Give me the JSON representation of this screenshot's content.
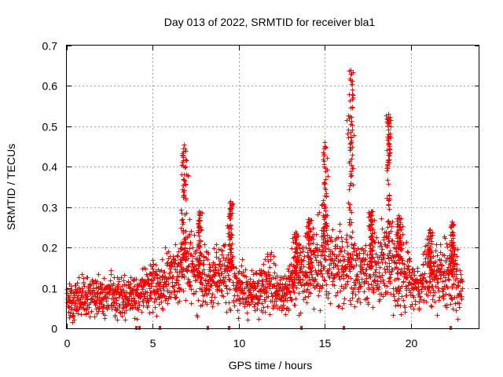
{
  "chart_data": {
    "type": "scatter",
    "title": "Day 013 of 2022, SRMTID for receiver bla1",
    "xlabel": "GPS time / hours",
    "ylabel": "SRMTID / TECUs",
    "xlim": [
      0,
      24
    ],
    "ylim": [
      0,
      0.7
    ],
    "xticks": [
      0,
      5,
      10,
      15,
      20
    ],
    "xtick_labels": [
      "0",
      "5",
      "10",
      "15",
      "20"
    ],
    "yticks": [
      0,
      0.1,
      0.2,
      0.3,
      0.4,
      0.5,
      0.6,
      0.7
    ],
    "ytick_labels": [
      "0",
      "0.1",
      "0.2",
      "0.3",
      "0.4",
      "0.5",
      "0.6",
      "0.7"
    ],
    "grid": true,
    "marker": "+",
    "color": "#ff0000",
    "background": [
      {
        "x": 0.0,
        "y": 0.07
      },
      {
        "x": 0.5,
        "y": 0.065
      },
      {
        "x": 1.0,
        "y": 0.075
      },
      {
        "x": 1.5,
        "y": 0.08
      },
      {
        "x": 2.0,
        "y": 0.07
      },
      {
        "x": 2.5,
        "y": 0.085
      },
      {
        "x": 3.0,
        "y": 0.08
      },
      {
        "x": 3.5,
        "y": 0.07
      },
      {
        "x": 4.0,
        "y": 0.075
      },
      {
        "x": 4.5,
        "y": 0.1
      },
      {
        "x": 5.0,
        "y": 0.105
      },
      {
        "x": 5.5,
        "y": 0.1
      },
      {
        "x": 6.0,
        "y": 0.12
      },
      {
        "x": 6.5,
        "y": 0.14
      },
      {
        "x": 7.0,
        "y": 0.17
      },
      {
        "x": 7.5,
        "y": 0.13
      },
      {
        "x": 8.0,
        "y": 0.12
      },
      {
        "x": 8.5,
        "y": 0.12
      },
      {
        "x": 9.0,
        "y": 0.13
      },
      {
        "x": 9.5,
        "y": 0.15
      },
      {
        "x": 10.0,
        "y": 0.1
      },
      {
        "x": 10.5,
        "y": 0.085
      },
      {
        "x": 11.0,
        "y": 0.09
      },
      {
        "x": 11.5,
        "y": 0.105
      },
      {
        "x": 12.0,
        "y": 0.1
      },
      {
        "x": 12.5,
        "y": 0.09
      },
      {
        "x": 13.0,
        "y": 0.1
      },
      {
        "x": 13.5,
        "y": 0.14
      },
      {
        "x": 14.0,
        "y": 0.15
      },
      {
        "x": 14.5,
        "y": 0.145
      },
      {
        "x": 15.0,
        "y": 0.17
      },
      {
        "x": 15.5,
        "y": 0.16
      },
      {
        "x": 16.0,
        "y": 0.15
      },
      {
        "x": 16.5,
        "y": 0.16
      },
      {
        "x": 17.0,
        "y": 0.13
      },
      {
        "x": 17.5,
        "y": 0.14
      },
      {
        "x": 18.0,
        "y": 0.14
      },
      {
        "x": 18.5,
        "y": 0.16
      },
      {
        "x": 19.0,
        "y": 0.15
      },
      {
        "x": 19.5,
        "y": 0.14
      },
      {
        "x": 20.0,
        "y": 0.11
      },
      {
        "x": 20.5,
        "y": 0.095
      },
      {
        "x": 21.0,
        "y": 0.13
      },
      {
        "x": 21.5,
        "y": 0.12
      },
      {
        "x": 22.0,
        "y": 0.13
      },
      {
        "x": 22.5,
        "y": 0.13
      },
      {
        "x": 22.8,
        "y": 0.1
      }
    ],
    "peaks": [
      {
        "x": 6.8,
        "y": 0.455,
        "width": 0.15
      },
      {
        "x": 7.7,
        "y": 0.29,
        "width": 0.1
      },
      {
        "x": 9.5,
        "y": 0.315,
        "width": 0.12
      },
      {
        "x": 13.3,
        "y": 0.24,
        "width": 0.2
      },
      {
        "x": 14.1,
        "y": 0.27,
        "width": 0.15
      },
      {
        "x": 15.0,
        "y": 0.46,
        "width": 0.12
      },
      {
        "x": 16.5,
        "y": 0.64,
        "width": 0.12
      },
      {
        "x": 17.7,
        "y": 0.29,
        "width": 0.12
      },
      {
        "x": 18.7,
        "y": 0.53,
        "width": 0.1
      },
      {
        "x": 19.3,
        "y": 0.28,
        "width": 0.12
      },
      {
        "x": 21.1,
        "y": 0.245,
        "width": 0.15
      },
      {
        "x": 22.4,
        "y": 0.265,
        "width": 0.1
      }
    ],
    "data_gaps_hours": [
      4.0,
      4.2,
      5.4,
      8.2,
      9.4,
      13.6,
      16.1,
      22.3
    ],
    "x_end": 23.0
  }
}
